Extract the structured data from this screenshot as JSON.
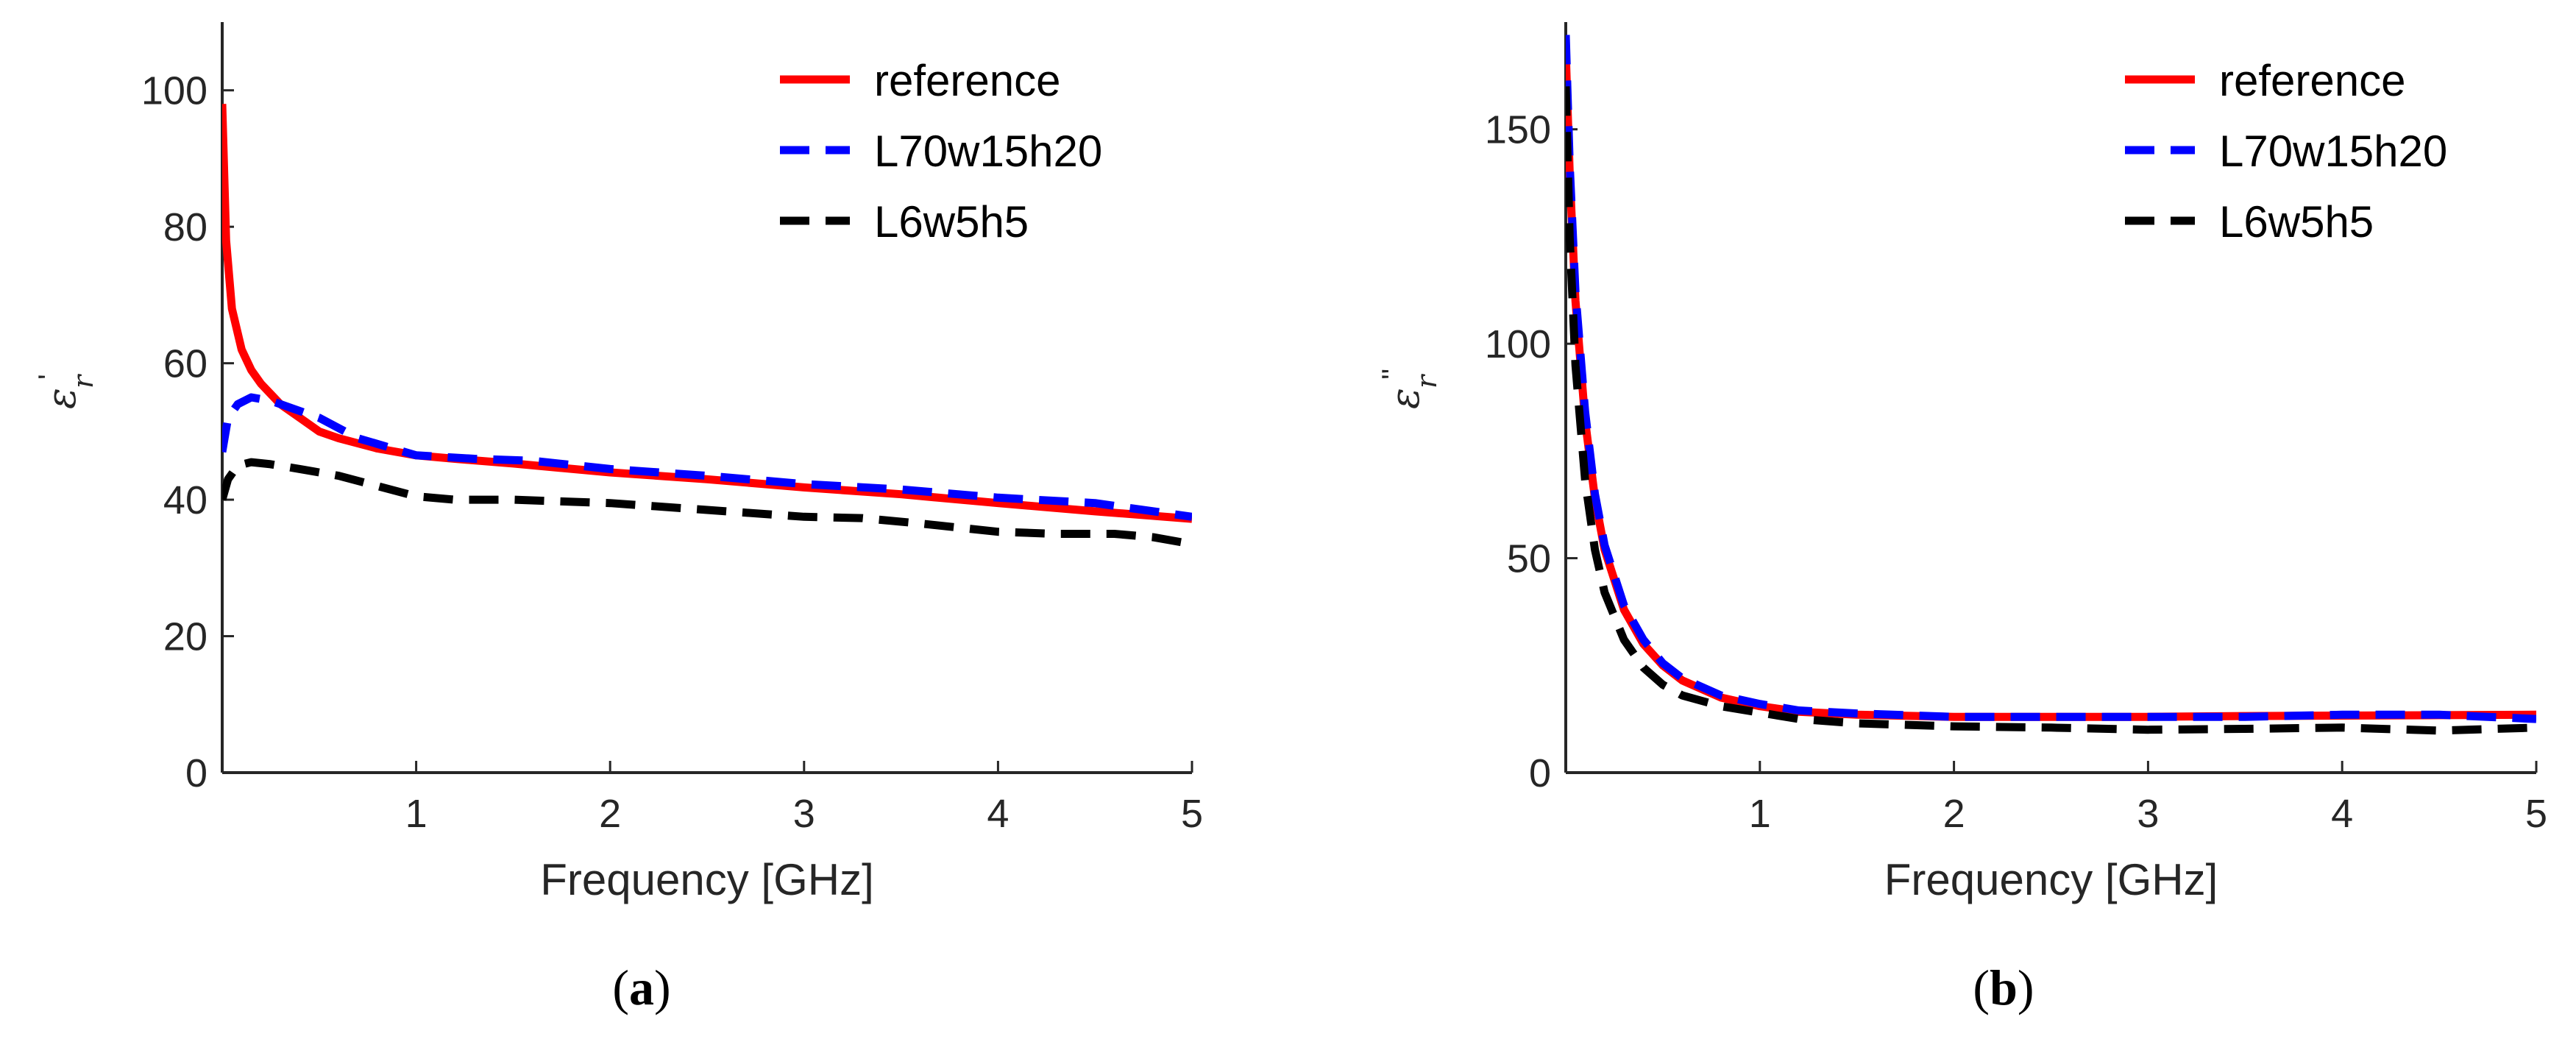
{
  "chart_data": [
    {
      "type": "line",
      "panel": "a",
      "panel_label": {
        "open": "(",
        "letter": "a",
        "close": ")"
      },
      "xlabel": "Frequency [GHz]",
      "ylabel": {
        "symbol": "ε",
        "subscript": "r",
        "prime": "'"
      },
      "xlim": [
        0,
        5
      ],
      "ylim": [
        0,
        110
      ],
      "xticks": [
        1,
        2,
        3,
        4,
        5
      ],
      "yticks": [
        0,
        20,
        40,
        60,
        80,
        100
      ],
      "xtick_labels": [
        "1",
        "2",
        "3",
        "4",
        "5"
      ],
      "ytick_labels": [
        "0",
        "20",
        "40",
        "60",
        "80",
        "100"
      ],
      "legend_position": "top-right",
      "series": [
        {
          "name": "reference",
          "color": "#ff0000",
          "style": "solid",
          "x": [
            0,
            0.02,
            0.05,
            0.1,
            0.15,
            0.2,
            0.3,
            0.4,
            0.5,
            0.6,
            0.8,
            1.0,
            1.2,
            1.5,
            2.0,
            2.5,
            3.0,
            3.5,
            4.0,
            4.5,
            5.0
          ],
          "y": [
            98,
            78,
            68,
            62,
            59,
            57,
            54,
            52,
            50,
            49,
            47.5,
            46.5,
            46,
            45.3,
            44,
            43,
            41.8,
            40.8,
            39.5,
            38.3,
            37.2
          ]
        },
        {
          "name": "L70w15h20",
          "color": "#0000ff",
          "style": "dashed",
          "x": [
            0,
            0.03,
            0.08,
            0.15,
            0.25,
            0.35,
            0.5,
            0.7,
            1.0,
            1.3,
            1.6,
            2.0,
            2.5,
            3.0,
            3.5,
            4.0,
            4.5,
            5.0
          ],
          "y": [
            47,
            52,
            54,
            55,
            54.5,
            53.5,
            52,
            49,
            46.5,
            46,
            45.7,
            44.5,
            43.5,
            42.3,
            41.5,
            40.3,
            39.5,
            37.5
          ]
        },
        {
          "name": "L6w5h5",
          "color": "#000000",
          "style": "dashed",
          "x": [
            0,
            0.03,
            0.08,
            0.15,
            0.25,
            0.4,
            0.6,
            0.8,
            1.0,
            1.2,
            1.5,
            2.0,
            2.5,
            3.0,
            3.3,
            3.6,
            4.0,
            4.3,
            4.6,
            4.8,
            5.0
          ],
          "y": [
            40,
            43,
            45,
            45.5,
            45.2,
            44.5,
            43.5,
            42,
            40.5,
            40,
            40,
            39.5,
            38.5,
            37.5,
            37.3,
            36.5,
            35.3,
            35,
            35,
            34.5,
            33.5
          ]
        }
      ]
    },
    {
      "type": "line",
      "panel": "b",
      "panel_label": {
        "open": "(",
        "letter": "b",
        "close": ")"
      },
      "xlabel": "Frequency [GHz]",
      "ylabel": {
        "symbol": "ε",
        "subscript": "r",
        "prime": "''"
      },
      "xlim": [
        0,
        5
      ],
      "ylim": [
        0,
        175
      ],
      "xticks": [
        1,
        2,
        3,
        4,
        5
      ],
      "yticks": [
        0,
        50,
        100,
        150
      ],
      "xtick_labels": [
        "1",
        "2",
        "3",
        "4",
        "5"
      ],
      "ytick_labels": [
        "0",
        "50",
        "100",
        "150"
      ],
      "legend_position": "top-right",
      "series": [
        {
          "name": "reference",
          "color": "#ff0000",
          "style": "solid",
          "x": [
            0,
            0.02,
            0.05,
            0.1,
            0.15,
            0.2,
            0.3,
            0.4,
            0.5,
            0.6,
            0.8,
            1.0,
            1.2,
            1.5,
            2.0,
            2.5,
            3.0,
            3.5,
            4.0,
            4.5,
            5.0
          ],
          "y": [
            168,
            140,
            110,
            82,
            64,
            52,
            38,
            30,
            25,
            21.5,
            17.5,
            15.5,
            14.2,
            13.5,
            13,
            13,
            13,
            13.2,
            13.3,
            13.4,
            13.5
          ]
        },
        {
          "name": "L70w15h20",
          "color": "#0000ff",
          "style": "dashed",
          "x": [
            0,
            0.02,
            0.05,
            0.1,
            0.15,
            0.2,
            0.3,
            0.4,
            0.5,
            0.6,
            0.8,
            1.0,
            1.2,
            1.5,
            2.0,
            2.5,
            3.0,
            3.5,
            4.0,
            4.5,
            5.0
          ],
          "y": [
            172,
            142,
            112,
            84,
            65,
            53,
            39,
            31,
            25.5,
            22,
            18,
            16,
            14.5,
            13.8,
            13,
            13,
            13,
            13,
            13.5,
            13.5,
            12.5
          ]
        },
        {
          "name": "L6w5h5",
          "color": "#000000",
          "style": "dashed",
          "x": [
            0,
            0.02,
            0.05,
            0.1,
            0.15,
            0.2,
            0.3,
            0.4,
            0.5,
            0.6,
            0.8,
            1.0,
            1.2,
            1.5,
            2.0,
            2.5,
            3.0,
            3.5,
            4.0,
            4.5,
            5.0
          ],
          "y": [
            160,
            125,
            95,
            68,
            52,
            42,
            31,
            24.5,
            20.5,
            18,
            15.5,
            14,
            12.5,
            11.5,
            10.8,
            10.5,
            10,
            10.2,
            10.5,
            9.8,
            10.5
          ]
        }
      ]
    }
  ]
}
